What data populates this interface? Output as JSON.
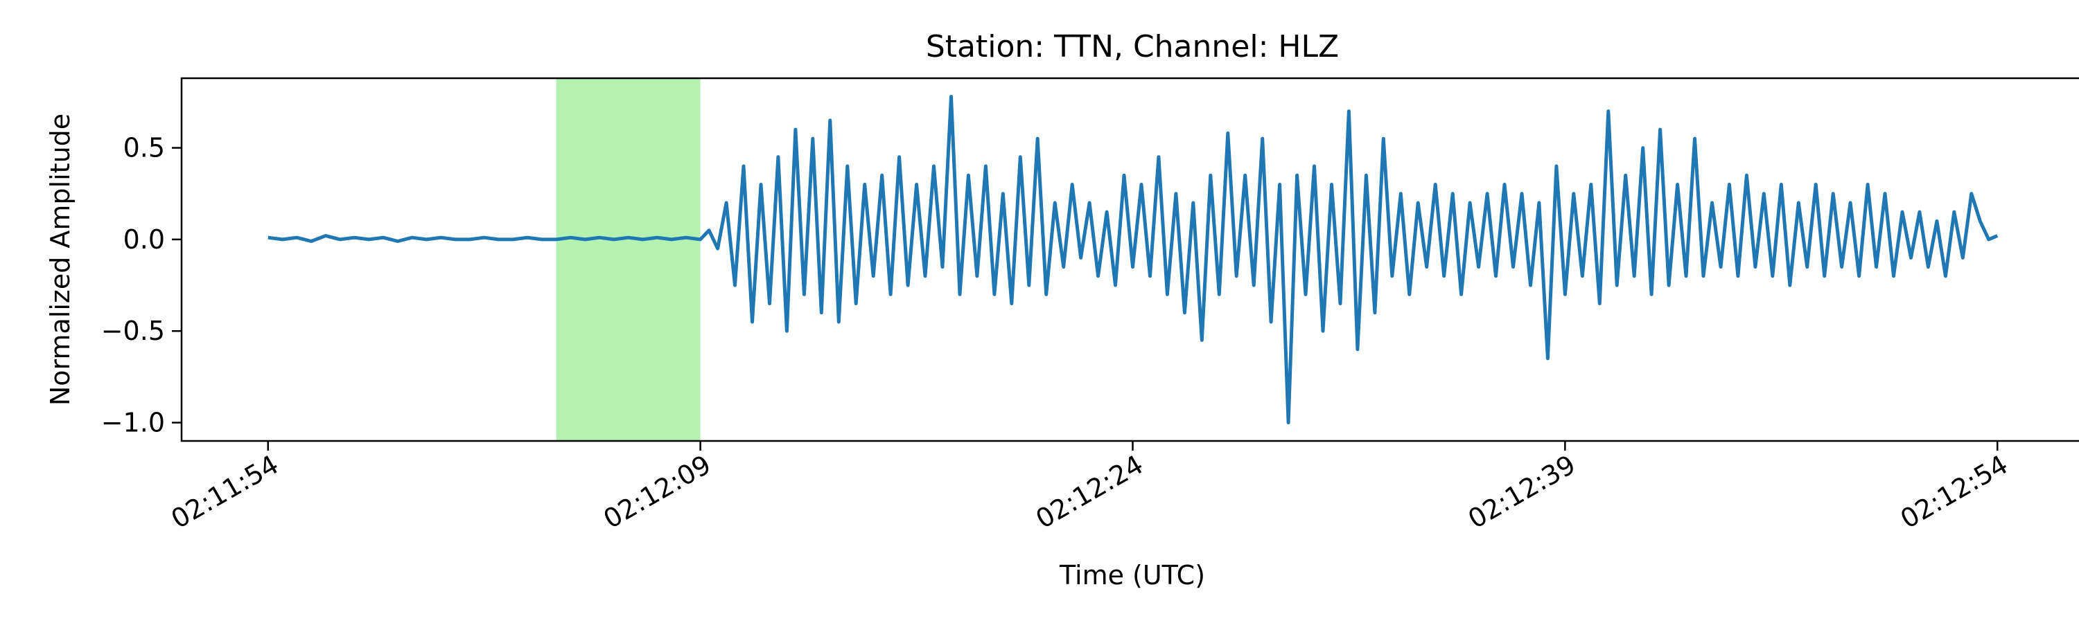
{
  "chart_data": {
    "type": "line",
    "title": "Station: TTN, Channel: HLZ",
    "xlabel": "Time (UTC)",
    "ylabel": "Normalized Amplitude",
    "xlim": [
      "02:11:51",
      "02:12:57"
    ],
    "ylim": [
      -1.1,
      0.88
    ],
    "xticks": [
      "02:11:54",
      "02:12:09",
      "02:12:24",
      "02:12:39",
      "02:12:54"
    ],
    "yticks": [
      "−1.0",
      "−0.5",
      "0.0",
      "0.5"
    ],
    "ytick_values": [
      -1.0,
      -0.5,
      0.0,
      0.5
    ],
    "grid": false,
    "highlight": {
      "start": "02:12:04",
      "end": "02:12:09",
      "color": "#b3f2b0"
    },
    "series": [
      {
        "color": "#1f77b4",
        "points": [
          [
            "02:11:54.0",
            0.01
          ],
          [
            "02:11:54.5",
            0.0
          ],
          [
            "02:11:55.0",
            0.01
          ],
          [
            "02:11:55.5",
            -0.01
          ],
          [
            "02:11:56.0",
            0.02
          ],
          [
            "02:11:56.5",
            0.0
          ],
          [
            "02:11:57.0",
            0.01
          ],
          [
            "02:11:57.5",
            0.0
          ],
          [
            "02:11:58.0",
            0.01
          ],
          [
            "02:11:58.5",
            -0.01
          ],
          [
            "02:11:59.0",
            0.01
          ],
          [
            "02:11:59.5",
            0.0
          ],
          [
            "02:12:00.0",
            0.01
          ],
          [
            "02:12:00.5",
            0.0
          ],
          [
            "02:12:01.0",
            0.0
          ],
          [
            "02:12:01.5",
            0.01
          ],
          [
            "02:12:02.0",
            0.0
          ],
          [
            "02:12:02.5",
            0.0
          ],
          [
            "02:12:03.0",
            0.01
          ],
          [
            "02:12:03.5",
            0.0
          ],
          [
            "02:12:04.0",
            0.0
          ],
          [
            "02:12:04.5",
            0.01
          ],
          [
            "02:12:05.0",
            0.0
          ],
          [
            "02:12:05.5",
            0.01
          ],
          [
            "02:12:06.0",
            0.0
          ],
          [
            "02:12:06.5",
            0.01
          ],
          [
            "02:12:07.0",
            0.0
          ],
          [
            "02:12:07.5",
            0.01
          ],
          [
            "02:12:08.0",
            0.0
          ],
          [
            "02:12:08.5",
            0.01
          ],
          [
            "02:12:09.0",
            0.0
          ],
          [
            "02:12:09.3",
            0.05
          ],
          [
            "02:12:09.6",
            -0.05
          ],
          [
            "02:12:09.9",
            0.2
          ],
          [
            "02:12:10.2",
            -0.25
          ],
          [
            "02:12:10.5",
            0.4
          ],
          [
            "02:12:10.8",
            -0.45
          ],
          [
            "02:12:11.1",
            0.3
          ],
          [
            "02:12:11.4",
            -0.35
          ],
          [
            "02:12:11.7",
            0.45
          ],
          [
            "02:12:12.0",
            -0.5
          ],
          [
            "02:12:12.3",
            0.6
          ],
          [
            "02:12:12.6",
            -0.3
          ],
          [
            "02:12:12.9",
            0.55
          ],
          [
            "02:12:13.2",
            -0.4
          ],
          [
            "02:12:13.5",
            0.65
          ],
          [
            "02:12:13.8",
            -0.45
          ],
          [
            "02:12:14.1",
            0.4
          ],
          [
            "02:12:14.4",
            -0.35
          ],
          [
            "02:12:14.7",
            0.3
          ],
          [
            "02:12:15.0",
            -0.2
          ],
          [
            "02:12:15.3",
            0.35
          ],
          [
            "02:12:15.6",
            -0.3
          ],
          [
            "02:12:15.9",
            0.45
          ],
          [
            "02:12:16.2",
            -0.25
          ],
          [
            "02:12:16.5",
            0.3
          ],
          [
            "02:12:16.8",
            -0.2
          ],
          [
            "02:12:17.1",
            0.4
          ],
          [
            "02:12:17.4",
            -0.15
          ],
          [
            "02:12:17.7",
            0.78
          ],
          [
            "02:12:18.0",
            -0.3
          ],
          [
            "02:12:18.3",
            0.35
          ],
          [
            "02:12:18.6",
            -0.2
          ],
          [
            "02:12:18.9",
            0.4
          ],
          [
            "02:12:19.2",
            -0.3
          ],
          [
            "02:12:19.5",
            0.25
          ],
          [
            "02:12:19.8",
            -0.35
          ],
          [
            "02:12:20.1",
            0.45
          ],
          [
            "02:12:20.4",
            -0.25
          ],
          [
            "02:12:20.7",
            0.55
          ],
          [
            "02:12:21.0",
            -0.3
          ],
          [
            "02:12:21.3",
            0.2
          ],
          [
            "02:12:21.6",
            -0.15
          ],
          [
            "02:12:21.9",
            0.3
          ],
          [
            "02:12:22.2",
            -0.1
          ],
          [
            "02:12:22.5",
            0.2
          ],
          [
            "02:12:22.8",
            -0.2
          ],
          [
            "02:12:23.1",
            0.15
          ],
          [
            "02:12:23.4",
            -0.25
          ],
          [
            "02:12:23.7",
            0.35
          ],
          [
            "02:12:24.0",
            -0.15
          ],
          [
            "02:12:24.3",
            0.3
          ],
          [
            "02:12:24.6",
            -0.2
          ],
          [
            "02:12:24.9",
            0.45
          ],
          [
            "02:12:25.2",
            -0.3
          ],
          [
            "02:12:25.5",
            0.25
          ],
          [
            "02:12:25.8",
            -0.4
          ],
          [
            "02:12:26.1",
            0.2
          ],
          [
            "02:12:26.4",
            -0.55
          ],
          [
            "02:12:26.7",
            0.35
          ],
          [
            "02:12:27.0",
            -0.3
          ],
          [
            "02:12:27.3",
            0.58
          ],
          [
            "02:12:27.6",
            -0.2
          ],
          [
            "02:12:27.9",
            0.35
          ],
          [
            "02:12:28.2",
            -0.25
          ],
          [
            "02:12:28.5",
            0.55
          ],
          [
            "02:12:28.8",
            -0.45
          ],
          [
            "02:12:29.1",
            0.3
          ],
          [
            "02:12:29.4",
            -1.0
          ],
          [
            "02:12:29.7",
            0.35
          ],
          [
            "02:12:30.0",
            -0.3
          ],
          [
            "02:12:30.3",
            0.4
          ],
          [
            "02:12:30.6",
            -0.5
          ],
          [
            "02:12:30.9",
            0.3
          ],
          [
            "02:12:31.2",
            -0.35
          ],
          [
            "02:12:31.5",
            0.7
          ],
          [
            "02:12:31.8",
            -0.6
          ],
          [
            "02:12:32.1",
            0.35
          ],
          [
            "02:12:32.4",
            -0.4
          ],
          [
            "02:12:32.7",
            0.55
          ],
          [
            "02:12:33.0",
            -0.2
          ],
          [
            "02:12:33.3",
            0.25
          ],
          [
            "02:12:33.6",
            -0.3
          ],
          [
            "02:12:33.9",
            0.2
          ],
          [
            "02:12:34.2",
            -0.15
          ],
          [
            "02:12:34.5",
            0.3
          ],
          [
            "02:12:34.8",
            -0.2
          ],
          [
            "02:12:35.1",
            0.25
          ],
          [
            "02:12:35.4",
            -0.3
          ],
          [
            "02:12:35.7",
            0.2
          ],
          [
            "02:12:36.0",
            -0.15
          ],
          [
            "02:12:36.3",
            0.25
          ],
          [
            "02:12:36.6",
            -0.2
          ],
          [
            "02:12:36.9",
            0.3
          ],
          [
            "02:12:37.2",
            -0.15
          ],
          [
            "02:12:37.5",
            0.25
          ],
          [
            "02:12:37.8",
            -0.25
          ],
          [
            "02:12:38.1",
            0.2
          ],
          [
            "02:12:38.4",
            -0.65
          ],
          [
            "02:12:38.7",
            0.4
          ],
          [
            "02:12:39.0",
            -0.3
          ],
          [
            "02:12:39.3",
            0.25
          ],
          [
            "02:12:39.6",
            -0.2
          ],
          [
            "02:12:39.9",
            0.3
          ],
          [
            "02:12:40.2",
            -0.35
          ],
          [
            "02:12:40.5",
            0.7
          ],
          [
            "02:12:40.8",
            -0.25
          ],
          [
            "02:12:41.1",
            0.35
          ],
          [
            "02:12:41.4",
            -0.2
          ],
          [
            "02:12:41.7",
            0.5
          ],
          [
            "02:12:42.0",
            -0.3
          ],
          [
            "02:12:42.3",
            0.6
          ],
          [
            "02:12:42.6",
            -0.25
          ],
          [
            "02:12:42.9",
            0.3
          ],
          [
            "02:12:43.2",
            -0.2
          ],
          [
            "02:12:43.5",
            0.55
          ],
          [
            "02:12:43.8",
            -0.2
          ],
          [
            "02:12:44.1",
            0.2
          ],
          [
            "02:12:44.4",
            -0.15
          ],
          [
            "02:12:44.7",
            0.3
          ],
          [
            "02:12:45.0",
            -0.2
          ],
          [
            "02:12:45.3",
            0.35
          ],
          [
            "02:12:45.6",
            -0.15
          ],
          [
            "02:12:45.9",
            0.25
          ],
          [
            "02:12:46.2",
            -0.2
          ],
          [
            "02:12:46.5",
            0.3
          ],
          [
            "02:12:46.8",
            -0.25
          ],
          [
            "02:12:47.1",
            0.2
          ],
          [
            "02:12:47.4",
            -0.15
          ],
          [
            "02:12:47.7",
            0.3
          ],
          [
            "02:12:48.0",
            -0.2
          ],
          [
            "02:12:48.3",
            0.25
          ],
          [
            "02:12:48.6",
            -0.15
          ],
          [
            "02:12:48.9",
            0.2
          ],
          [
            "02:12:49.2",
            -0.2
          ],
          [
            "02:12:49.5",
            0.3
          ],
          [
            "02:12:49.8",
            -0.15
          ],
          [
            "02:12:50.1",
            0.25
          ],
          [
            "02:12:50.4",
            -0.2
          ],
          [
            "02:12:50.7",
            0.15
          ],
          [
            "02:12:51.0",
            -0.1
          ],
          [
            "02:12:51.3",
            0.15
          ],
          [
            "02:12:51.6",
            -0.15
          ],
          [
            "02:12:51.9",
            0.1
          ],
          [
            "02:12:52.2",
            -0.2
          ],
          [
            "02:12:52.5",
            0.15
          ],
          [
            "02:12:52.8",
            -0.1
          ],
          [
            "02:12:53.1",
            0.25
          ],
          [
            "02:12:53.4",
            0.1
          ],
          [
            "02:12:53.7",
            0.0
          ],
          [
            "02:12:54.0",
            0.02
          ]
        ]
      }
    ]
  }
}
